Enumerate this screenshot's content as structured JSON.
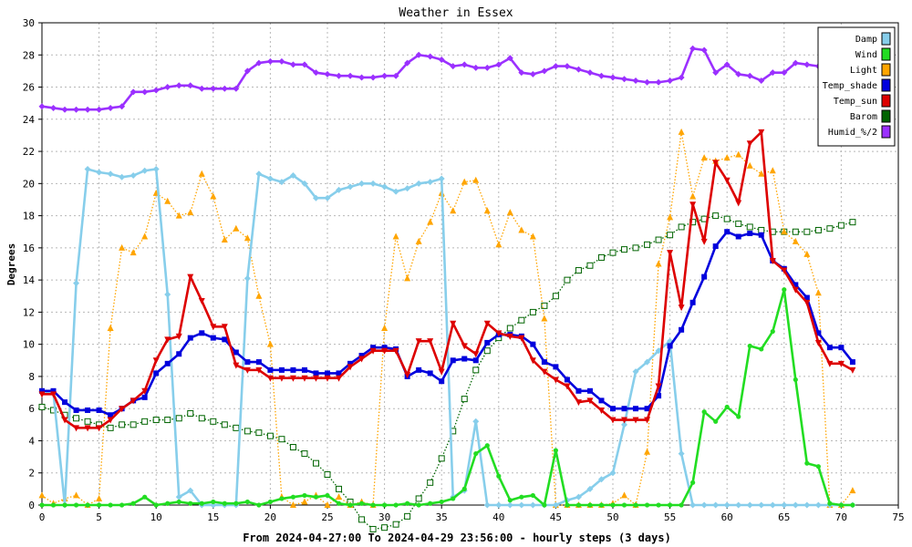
{
  "chart_data": {
    "type": "line",
    "title": "Weather in Essex",
    "xlabel": "From 2024-04-27:00 To 2024-04-29 23:56:00 - hourly steps (3 days)",
    "ylabel": "Degrees",
    "xlim": [
      0,
      75
    ],
    "ylim": [
      0,
      30
    ],
    "xticks": [
      0,
      5,
      10,
      15,
      20,
      25,
      30,
      35,
      40,
      45,
      50,
      55,
      60,
      65,
      70,
      75
    ],
    "yticks": [
      0,
      2,
      4,
      6,
      8,
      10,
      12,
      14,
      16,
      18,
      20,
      22,
      24,
      26,
      28,
      30
    ],
    "grid": true,
    "legend_position": "top-right",
    "x": [
      0,
      1,
      2,
      3,
      4,
      5,
      6,
      7,
      8,
      9,
      10,
      11,
      12,
      13,
      14,
      15,
      16,
      17,
      18,
      19,
      20,
      21,
      22,
      23,
      24,
      25,
      26,
      27,
      28,
      29,
      30,
      31,
      32,
      33,
      34,
      35,
      36,
      37,
      38,
      39,
      40,
      41,
      42,
      43,
      44,
      45,
      46,
      47,
      48,
      49,
      50,
      51,
      52,
      53,
      54,
      55,
      56,
      57,
      58,
      59,
      60,
      61,
      62,
      63,
      64,
      65,
      66,
      67,
      68,
      69,
      70,
      71
    ],
    "series": [
      {
        "name": "Damp",
        "color": "#87ceeb",
        "style": "solid",
        "marker": "diamond",
        "values": [
          7.0,
          7.0,
          0.0,
          13.8,
          20.9,
          20.7,
          20.6,
          20.4,
          20.5,
          20.8,
          20.9,
          13.1,
          0.5,
          0.9,
          0.0,
          0.0,
          0.0,
          0.0,
          14.1,
          20.6,
          20.3,
          20.1,
          20.5,
          20.0,
          19.1,
          19.1,
          19.6,
          19.8,
          20.0,
          20.0,
          19.8,
          19.5,
          19.7,
          20.0,
          20.1,
          20.3,
          0.5,
          0.9,
          5.2,
          0.0,
          0.0,
          0.0,
          0.0,
          0.0,
          0.0,
          0.0,
          0.3,
          0.5,
          1.0,
          1.6,
          2.0,
          5.0,
          8.3,
          8.9,
          9.6,
          10.2,
          3.2,
          0.0,
          0.0,
          0.0,
          0.0,
          0.0,
          0.0,
          0.0,
          0.0,
          0.0,
          0.0,
          0.0,
          0.0,
          0.0,
          0.0,
          0.0
        ]
      },
      {
        "name": "Wind",
        "color": "#22dd22",
        "style": "solid",
        "marker": "circle",
        "values": [
          0.0,
          0.0,
          0.0,
          0.0,
          0.0,
          0.0,
          0.0,
          0.0,
          0.1,
          0.5,
          0.0,
          0.1,
          0.2,
          0.1,
          0.1,
          0.2,
          0.1,
          0.1,
          0.2,
          0.0,
          0.2,
          0.4,
          0.5,
          0.6,
          0.5,
          0.6,
          0.1,
          0.0,
          0.1,
          0.0,
          0.0,
          0.0,
          0.1,
          0.0,
          0.1,
          0.2,
          0.4,
          1.0,
          3.2,
          3.7,
          1.8,
          0.3,
          0.5,
          0.6,
          0.0,
          3.4,
          0.0,
          0.0,
          0.0,
          0.0,
          0.0,
          0.0,
          0.0,
          0.0,
          0.0,
          0.0,
          0.0,
          1.4,
          5.8,
          5.2,
          6.1,
          5.5,
          9.9,
          9.7,
          10.8,
          13.4,
          7.8,
          2.6,
          2.4,
          0.1,
          0.0,
          0.0
        ]
      },
      {
        "name": "Light",
        "color": "#ffa500",
        "style": "dotted",
        "marker": "triangle-up",
        "values": [
          0.6,
          0.1,
          0.4,
          0.6,
          0.0,
          0.4,
          11.0,
          16.0,
          15.7,
          16.7,
          19.4,
          18.9,
          18.0,
          18.2,
          20.6,
          19.2,
          16.5,
          17.2,
          16.6,
          13.0,
          10.0,
          0.5,
          0.0,
          0.2,
          0.6,
          0.0,
          0.5,
          0.0,
          0.2,
          0.0,
          11.0,
          16.7,
          14.1,
          16.4,
          17.6,
          19.4,
          18.3,
          20.1,
          20.2,
          18.3,
          16.2,
          18.2,
          17.1,
          16.7,
          11.6,
          0.0,
          0.0,
          0.0,
          0.0,
          0.0,
          0.1,
          0.6,
          0.0,
          3.3,
          15.0,
          17.9,
          23.2,
          19.2,
          21.6,
          21.4,
          21.6,
          21.8,
          21.1,
          20.6,
          20.8,
          17.0,
          16.4,
          15.6,
          13.2,
          0.0,
          0.0,
          0.9
        ]
      },
      {
        "name": "Temp_shade",
        "color": "#0000dd",
        "style": "solid",
        "marker": "square",
        "values": [
          7.1,
          7.1,
          6.4,
          5.9,
          5.9,
          5.9,
          5.6,
          6.0,
          6.5,
          6.7,
          8.2,
          8.8,
          9.4,
          10.4,
          10.7,
          10.4,
          10.3,
          9.5,
          8.9,
          8.9,
          8.4,
          8.4,
          8.4,
          8.4,
          8.2,
          8.2,
          8.2,
          8.8,
          9.3,
          9.8,
          9.8,
          9.7,
          8.0,
          8.4,
          8.2,
          7.7,
          9.0,
          9.1,
          9.0,
          10.1,
          10.6,
          10.6,
          10.5,
          10.0,
          8.9,
          8.6,
          7.8,
          7.1,
          7.1,
          6.5,
          6.0,
          6.0,
          6.0,
          6.0,
          6.8,
          9.9,
          10.9,
          12.6,
          14.2,
          16.1,
          17.0,
          16.7,
          16.9,
          16.8,
          15.2,
          14.7,
          13.7,
          12.9,
          10.7,
          9.8,
          9.8,
          8.9
        ]
      },
      {
        "name": "Temp_sun",
        "color": "#dd0000",
        "style": "solid",
        "marker": "triangle-down",
        "values": [
          6.9,
          6.9,
          5.3,
          4.8,
          4.8,
          4.8,
          5.3,
          6.0,
          6.5,
          7.1,
          9.0,
          10.3,
          10.5,
          14.2,
          12.7,
          11.1,
          11.1,
          8.7,
          8.4,
          8.4,
          7.9,
          7.9,
          7.9,
          7.9,
          7.9,
          7.9,
          7.9,
          8.6,
          9.1,
          9.6,
          9.6,
          9.6,
          8.1,
          10.2,
          10.2,
          8.3,
          11.3,
          9.9,
          9.4,
          11.3,
          10.7,
          10.5,
          10.4,
          9.0,
          8.3,
          7.8,
          7.4,
          6.4,
          6.5,
          5.9,
          5.3,
          5.3,
          5.3,
          5.3,
          7.4,
          15.7,
          12.3,
          18.7,
          16.4,
          21.3,
          20.2,
          18.8,
          22.5,
          23.2,
          15.2,
          14.6,
          13.4,
          12.6,
          10.1,
          8.8,
          8.8,
          8.4
        ]
      },
      {
        "name": "Barom",
        "color": "#006400",
        "style": "dotted",
        "marker": "open-square",
        "values": [
          6.1,
          5.9,
          5.6,
          5.4,
          5.2,
          5.0,
          4.8,
          5.0,
          5.0,
          5.2,
          5.3,
          5.3,
          5.4,
          5.7,
          5.4,
          5.2,
          5.0,
          4.8,
          4.6,
          4.5,
          4.3,
          4.1,
          3.6,
          3.2,
          2.6,
          1.9,
          1.0,
          0.2,
          -0.9,
          -1.5,
          -1.4,
          -1.2,
          -0.7,
          0.4,
          1.4,
          2.9,
          4.6,
          6.6,
          8.4,
          9.6,
          10.4,
          11.0,
          11.5,
          12.0,
          12.4,
          13.0,
          14.0,
          14.6,
          14.9,
          15.4,
          15.7,
          15.9,
          16.0,
          16.2,
          16.5,
          16.8,
          17.3,
          17.6,
          17.8,
          18.0,
          17.8,
          17.5,
          17.3,
          17.1,
          17.0,
          17.0,
          17.0,
          17.0,
          17.1,
          17.2,
          17.4,
          17.6
        ]
      },
      {
        "name": "Humid_%/2",
        "color": "#9b30ff",
        "style": "solid",
        "marker": "diamond",
        "values": [
          24.8,
          24.7,
          24.6,
          24.6,
          24.6,
          24.6,
          24.7,
          24.8,
          25.7,
          25.7,
          25.8,
          26.0,
          26.1,
          26.1,
          25.9,
          25.9,
          25.9,
          25.9,
          27.0,
          27.5,
          27.6,
          27.6,
          27.4,
          27.4,
          26.9,
          26.8,
          26.7,
          26.7,
          26.6,
          26.6,
          26.7,
          26.7,
          27.5,
          28.0,
          27.9,
          27.7,
          27.3,
          27.4,
          27.2,
          27.2,
          27.4,
          27.8,
          26.9,
          26.8,
          27.0,
          27.3,
          27.3,
          27.1,
          26.9,
          26.7,
          26.6,
          26.5,
          26.4,
          26.3,
          26.3,
          26.4,
          26.6,
          28.4,
          28.3,
          26.9,
          27.4,
          26.8,
          26.7,
          26.4,
          26.9,
          26.9,
          27.5,
          27.4,
          27.3,
          27.4,
          27.4,
          27.5
        ]
      }
    ]
  }
}
